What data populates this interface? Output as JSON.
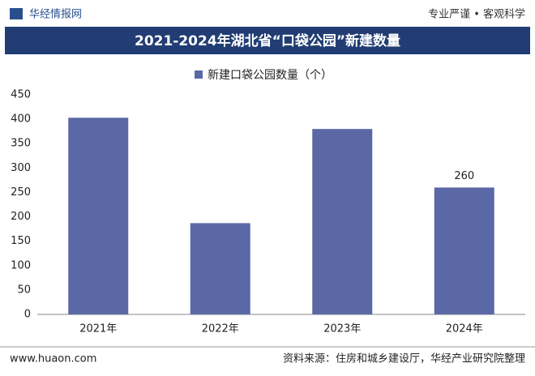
{
  "header": {
    "brand": "华经情报网",
    "slogan": "专业严谨 • 客观科学"
  },
  "chart_data": {
    "type": "bar",
    "title": "2021-2024年湖北省“口袋公园”新建数量",
    "categories": [
      "2021年",
      "2022年",
      "2023年",
      "2024年"
    ],
    "series": [
      {
        "name": "新建口袋公园数量（个）",
        "color": "#5b68a6",
        "values": [
          403,
          187,
          380,
          260
        ],
        "value_labels": [
          null,
          null,
          null,
          "260"
        ]
      }
    ],
    "ylim": [
      0,
      450
    ],
    "yticks": [
      0,
      50,
      100,
      150,
      200,
      250,
      300,
      350,
      400,
      450
    ],
    "grid": false,
    "legend": "top"
  },
  "footer": {
    "site": "www.huaon.com",
    "source": "资料来源：住房和城乡建设厅，华经产业研究院整理"
  }
}
